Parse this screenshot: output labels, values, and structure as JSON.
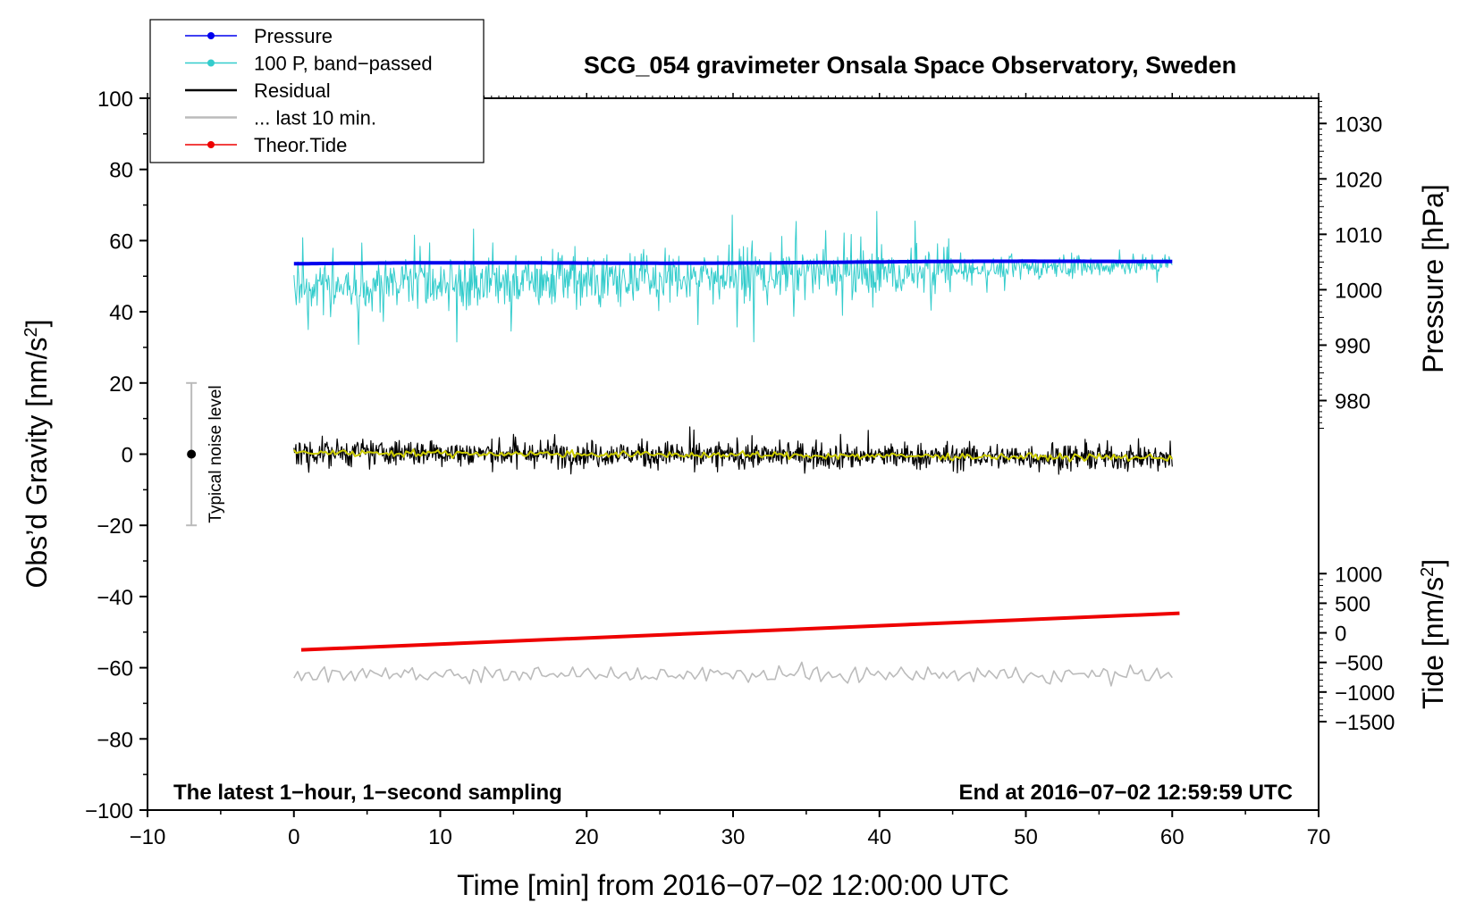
{
  "chart_data": {
    "type": "line",
    "title": "SCG_054 gravimeter Onsala Space Observatory, Sweden",
    "xlabel": "Time [min] from 2016−07−02 12:00:00 UTC",
    "ylabel": "Obs’d Gravity [nm/s",
    "ylabel_sup": "2",
    "ylabel_end": "]",
    "xlim": [
      -10,
      70
    ],
    "ylim": [
      -100,
      100
    ],
    "x_ticks": [
      -10,
      0,
      10,
      20,
      30,
      40,
      50,
      60,
      70
    ],
    "x_tick_labels": [
      "−10",
      "0",
      "10",
      "20",
      "30",
      "40",
      "50",
      "60",
      "70"
    ],
    "y_ticks": [
      -100,
      -80,
      -60,
      -40,
      -20,
      0,
      20,
      40,
      60,
      80,
      100
    ],
    "y_tick_labels": [
      "−100",
      "−80",
      "−60",
      "−40",
      "−20",
      "0",
      "20",
      "40",
      "60",
      "80",
      "100"
    ],
    "pressure_axis": {
      "label": "Pressure [hPa]",
      "ticks": [
        980,
        990,
        1000,
        1010,
        1020,
        1030
      ],
      "tick_labels": [
        "980",
        "990",
        "1000",
        "1010",
        "1020",
        "1030"
      ],
      "ref_value": 1000,
      "ref_gravity": 46.2,
      "gravity_per_unit": 1.557
    },
    "tide_axis": {
      "label": "Tide [nm/s",
      "label_sup": "2",
      "label_end": "]",
      "ticks": [
        -1500,
        -1000,
        -500,
        0,
        500,
        1000
      ],
      "tick_labels": [
        "−1500",
        "−1000",
        "−500",
        "0",
        "500",
        "1000"
      ],
      "ref_value": 0,
      "ref_gravity": -50.2,
      "gravity_per_unit": 0.01663
    },
    "series": [
      {
        "name": "Pressure",
        "color": "#0000ee",
        "x_range": [
          0,
          60
        ],
        "start": 53.5,
        "end": 54.2,
        "noise": 0.2
      },
      {
        "name": "100 P, band−passed",
        "color": "#33cccc",
        "x_range": [
          0,
          60
        ],
        "start": 47,
        "end": 53.5,
        "noise": 5
      },
      {
        "name": "Residual",
        "color": "#000000",
        "x_range": [
          0,
          60
        ],
        "start": 0.5,
        "end": -1,
        "noise": 2.5
      },
      {
        "name": "... last 10 min.",
        "color": "#bbbbbb",
        "x_range": [
          0,
          60
        ],
        "start": -62,
        "end": -62,
        "noise": 1.8
      },
      {
        "name": "Theor.Tide",
        "color": "#ee0000",
        "x_range": [
          0.5,
          60.5
        ],
        "start": -55,
        "end": -44.7,
        "noise": 0
      }
    ],
    "smoothed_residual": {
      "color": "#cccc00",
      "noise": 0.8
    },
    "noise_bar": {
      "label": "Typical noise level",
      "x": -7,
      "center": 0,
      "low": -20,
      "high": 20
    },
    "annotations": {
      "left": "The latest 1−hour, 1−second sampling",
      "right": "End at 2016−07−02 12:59:59 UTC"
    }
  }
}
